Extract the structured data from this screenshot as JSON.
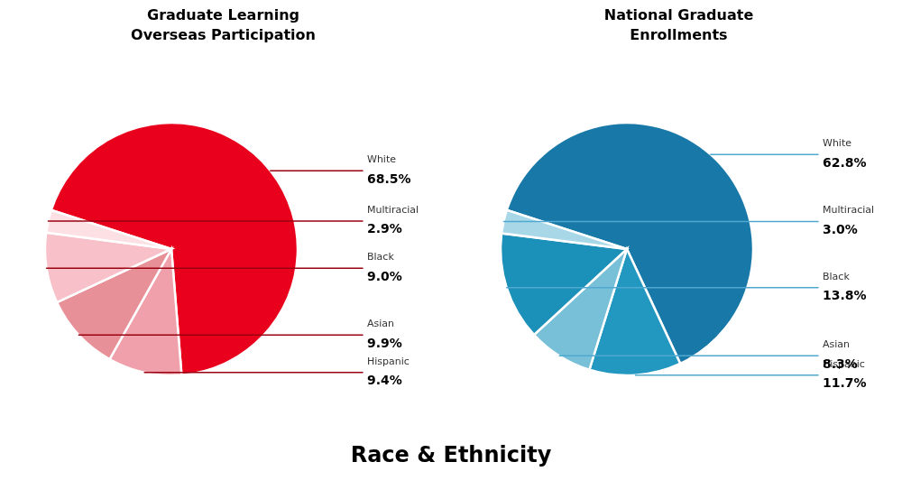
{
  "xlabel": "Race & Ethnicity",
  "chart_data": [
    {
      "type": "pie",
      "title": "Graduate Learning\nOverseas Participation",
      "categories": [
        "White",
        "Hispanic",
        "Asian",
        "Black",
        "Multiracial"
      ],
      "values": [
        68.5,
        9.4,
        9.9,
        9.0,
        2.9
      ],
      "value_labels": [
        "68.5%",
        "9.4%",
        "9.9%",
        "9.0%",
        "2.9%"
      ],
      "colors": [
        "#e8001c",
        "#f0a0aa",
        "#e89098",
        "#f8c0c8",
        "#fde0e4"
      ],
      "color": "#990010",
      "data_labels": true
    },
    {
      "type": "pie",
      "title": "National Graduate\nEnrollments",
      "categories": [
        "White",
        "Hispanic",
        "Asian",
        "Black",
        "Multiracial"
      ],
      "values": [
        62.8,
        11.7,
        8.3,
        13.8,
        3.0
      ],
      "value_labels": [
        "62.8%",
        "11.7%",
        "8.3%",
        "13.8%",
        "3.0%"
      ],
      "colors": [
        "#1878a8",
        "#2298c0",
        "#78c0d8",
        "#1b90b8",
        "#a8d8e8"
      ],
      "color": "#50a8d0",
      "data_labels": true
    }
  ]
}
